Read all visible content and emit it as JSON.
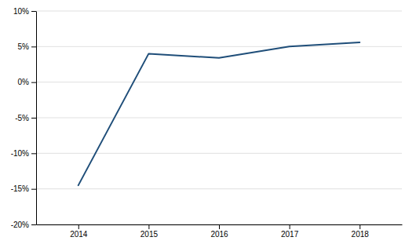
{
  "chart_data": {
    "type": "line",
    "x": [
      2014,
      2015,
      2016,
      2017,
      2018
    ],
    "values": [
      -0.145,
      0.04,
      0.034,
      0.05,
      0.056
    ],
    "color": "#1F4E79",
    "xlim": [
      2013.4,
      2018.6
    ],
    "xticks": [
      2014,
      2015,
      2016,
      2017,
      2018
    ],
    "ylim": [
      -0.2,
      0.1
    ],
    "yticks": [
      {
        "value": -0.2,
        "label": "-20%"
      },
      {
        "value": -0.15,
        "label": "-15%"
      },
      {
        "value": -0.1,
        "label": "-10%"
      },
      {
        "value": -0.05,
        "label": "-5%"
      },
      {
        "value": 0.0,
        "label": "0%"
      },
      {
        "value": 0.05,
        "label": "5%"
      },
      {
        "value": 0.1,
        "label": "10%"
      }
    ],
    "grid": true
  }
}
